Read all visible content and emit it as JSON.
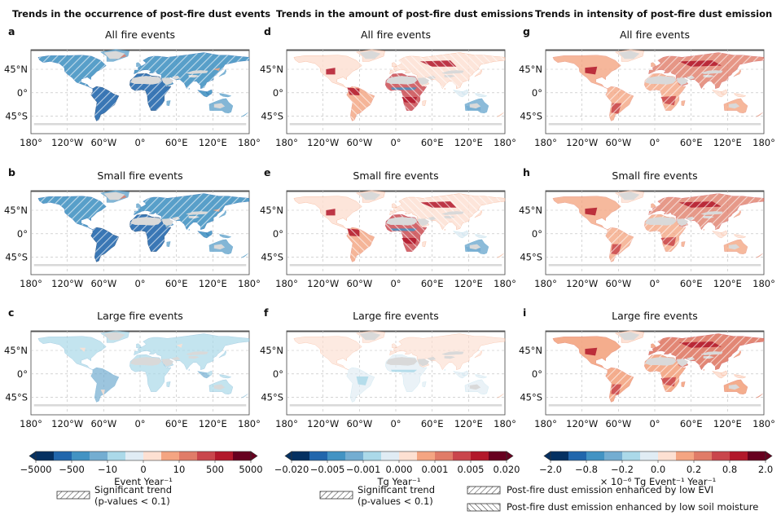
{
  "column_titles": [
    "Trends in the occurrence of post-fire dust events",
    "Trends in the amount of post-fire dust emissions",
    "Trends in intensity of post-fire dust emission"
  ],
  "axis": {
    "lon_ticks": [
      "180°",
      "120°W",
      "60°W",
      "0°",
      "60°E",
      "120°E",
      "180°"
    ],
    "lat_ticks": [
      "45°N",
      "0°",
      "45°S"
    ]
  },
  "panels": [
    {
      "id": "a",
      "label": "a",
      "title": "All fire events",
      "variable": "occurrence",
      "tone": "blue",
      "strength": 0.75
    },
    {
      "id": "b",
      "label": "b",
      "title": "Small fire events",
      "variable": "occurrence",
      "tone": "blue",
      "strength": 0.75
    },
    {
      "id": "c",
      "label": "c",
      "title": "Large fire events",
      "variable": "occurrence",
      "tone": "lightblue",
      "strength": 0.35
    },
    {
      "id": "d",
      "label": "d",
      "title": "All fire events",
      "variable": "amount",
      "tone": "mixed",
      "strength": 0.6
    },
    {
      "id": "e",
      "label": "e",
      "title": "Small fire events",
      "variable": "amount",
      "tone": "mixed",
      "strength": 0.6
    },
    {
      "id": "f",
      "label": "f",
      "title": "Large fire events",
      "variable": "amount",
      "tone": "faint",
      "strength": 0.25
    },
    {
      "id": "g",
      "label": "g",
      "title": "All fire events",
      "variable": "intensity",
      "tone": "red",
      "strength": 0.55
    },
    {
      "id": "h",
      "label": "h",
      "title": "Small fire events",
      "variable": "intensity",
      "tone": "red",
      "strength": 0.5
    },
    {
      "id": "i",
      "label": "i",
      "title": "Large fire events",
      "variable": "intensity",
      "tone": "red",
      "strength": 0.8
    }
  ],
  "chart_data": {
    "type": "heatmap",
    "colorbars": [
      {
        "label": "Event Year⁻¹",
        "ticks": [
          "−5000",
          "−500",
          "−10",
          "0",
          "10",
          "500",
          "5000"
        ]
      },
      {
        "label": "Tg Year⁻¹",
        "ticks": [
          "−0.020",
          "−0.005",
          "−0.001",
          "0.000",
          "0.001",
          "0.005",
          "0.020"
        ]
      },
      {
        "label": "× 10⁻⁶ Tg Event⁻¹ Year⁻¹",
        "ticks": [
          "−2.0",
          "−0.8",
          "−0.2",
          "0.0",
          "0.2",
          "0.8",
          "2.0"
        ]
      }
    ],
    "colors": [
      "#053061",
      "#2166ac",
      "#4393c3",
      "#74add1",
      "#abd9e9",
      "#e0ecf4",
      "#fde0d2",
      "#f4a582",
      "#e07c68",
      "#c9464c",
      "#b2182b",
      "#67001f"
    ],
    "no_data_color": "#d9d9d9"
  },
  "legends": [
    {
      "text1": "Significant trend",
      "text2": "(p-values < 0.1)"
    },
    {
      "text1": "Significant trend",
      "text2": "(p-values < 0.1)"
    },
    {
      "text1": "Post-fire dust emission enhanced by low EVI"
    },
    {
      "text1": "Post-fire dust emission enhanced by low soil moisture"
    }
  ]
}
